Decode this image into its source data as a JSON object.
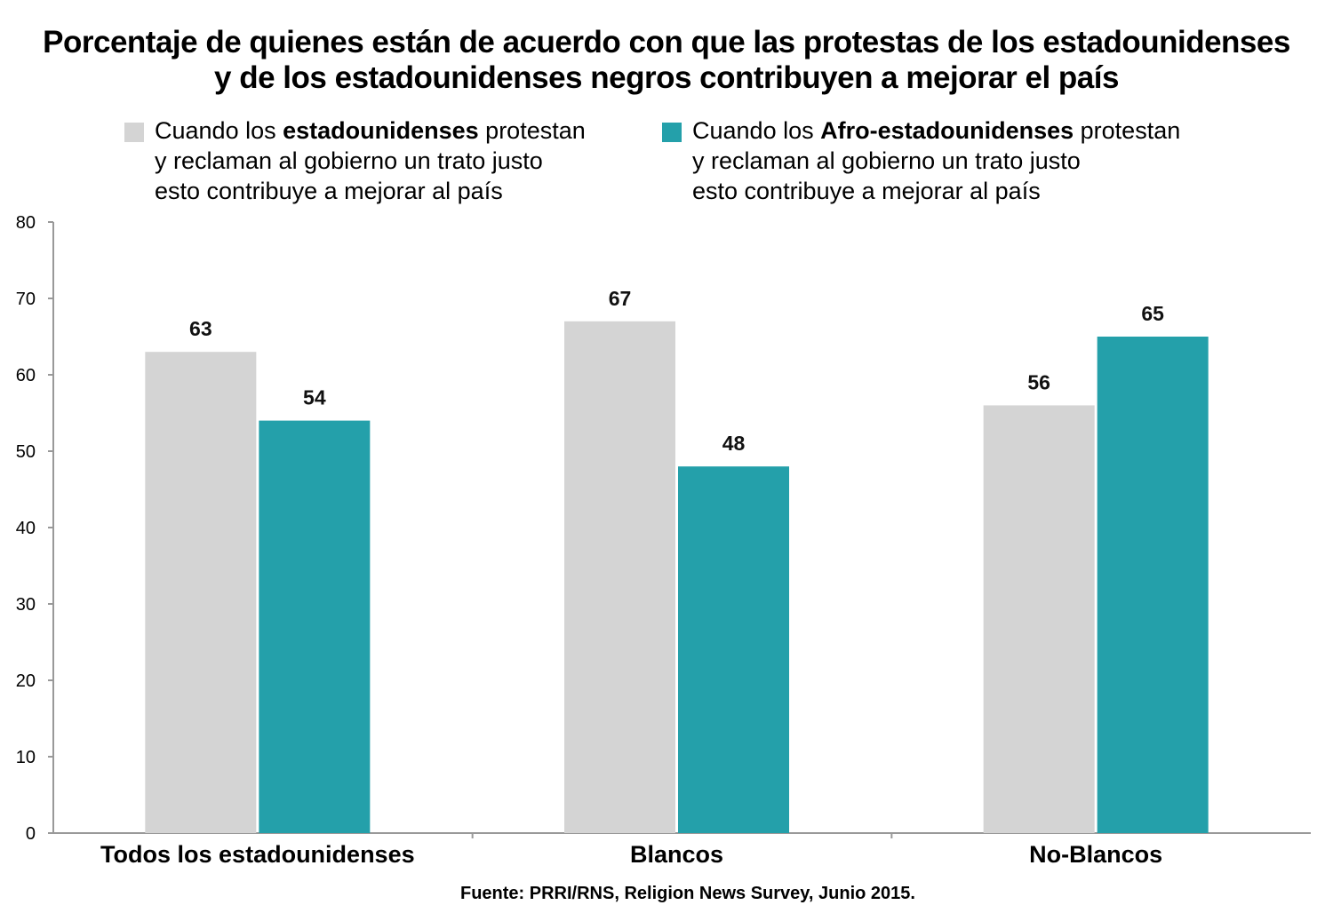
{
  "title": {
    "line1": "Porcentaje de quienes están de acuerdo con que las protestas de los  estadounidenses",
    "line2": "y de los estadounidenses negros contribuyen a mejorar el país"
  },
  "legend": [
    {
      "color": "#d4d4d4",
      "prefix": "Cuando los ",
      "bold": "estadounidenses",
      "suffix": " protestan",
      "line2": "y reclaman al gobierno un trato justo",
      "line3": "esto contribuye a mejorar al país"
    },
    {
      "color": "#24a0aa",
      "prefix": "Cuando los ",
      "bold": "Afro-estadounidenses",
      "suffix": " protestan",
      "line2": "y reclaman al gobierno un trato justo",
      "line3": "esto contribuye a mejorar al país"
    }
  ],
  "chart_data": {
    "type": "bar",
    "categories": [
      "Todos los estadounidenses",
      "Blancos",
      "No-Blancos"
    ],
    "series": [
      {
        "name": "Cuando los estadounidenses protestan y reclaman al gobierno un trato justo esto contribuye a mejorar al país",
        "color": "#d4d4d4",
        "values": [
          63,
          67,
          56
        ]
      },
      {
        "name": "Cuando los Afro-estadounidenses protestan y reclaman al gobierno un trato justo esto contribuye a mejorar al país",
        "color": "#24a0aa",
        "values": [
          54,
          48,
          65
        ]
      }
    ],
    "yticks": [
      "0",
      "10",
      "20",
      "30",
      "40",
      "50",
      "60",
      "70",
      "80"
    ],
    "ylim": [
      0,
      80
    ],
    "xlabel": "",
    "ylabel": "",
    "grid": false
  },
  "source": "Fuente: PRRI/RNS, Religion News Survey, Junio 2015."
}
